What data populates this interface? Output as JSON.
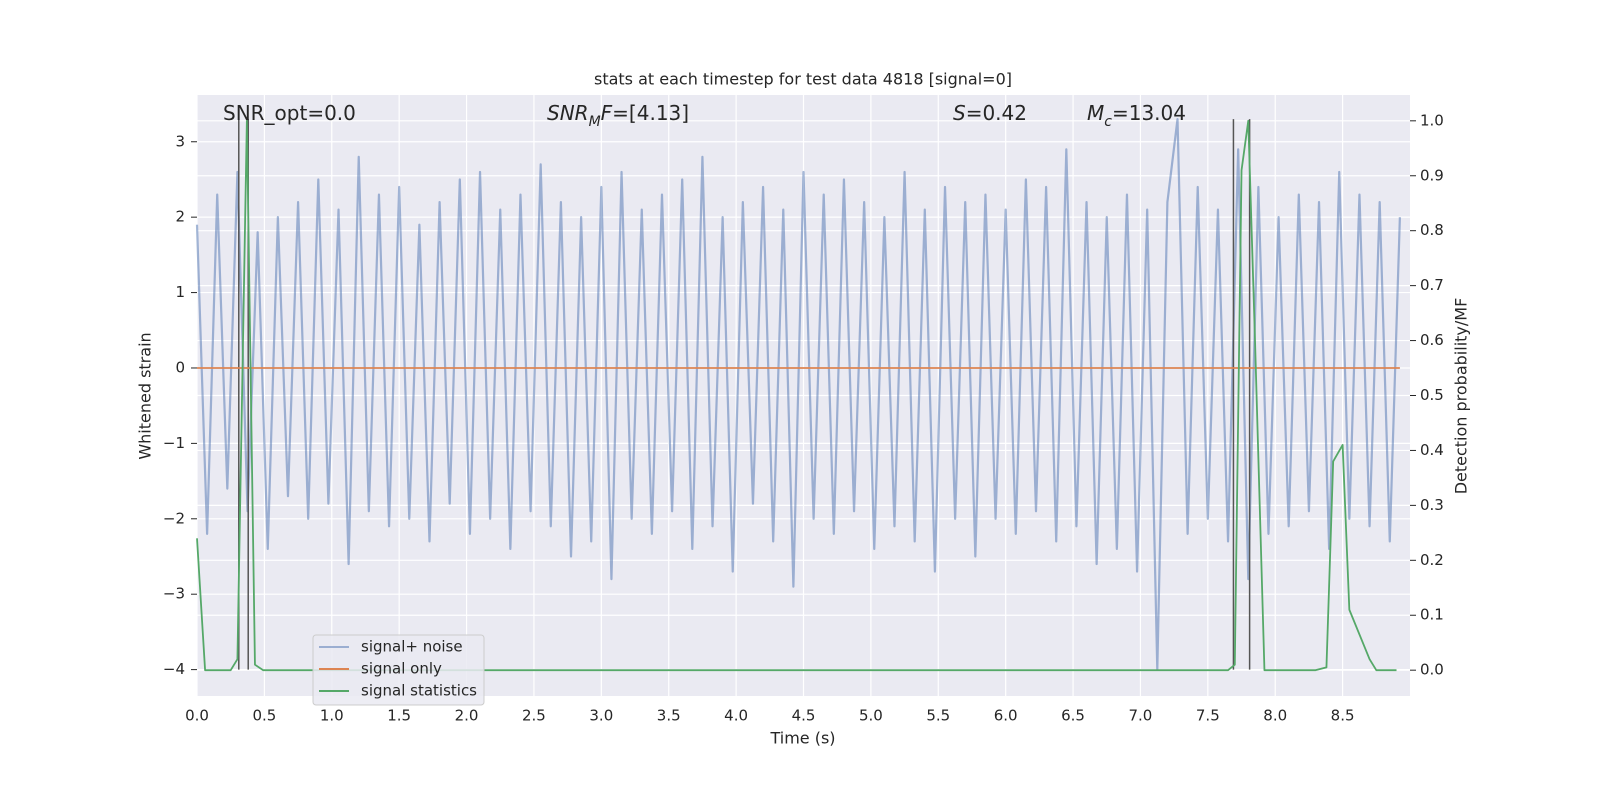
{
  "chart_data": {
    "type": "line",
    "title": "stats at each timestep for test data 4818 [signal=0]",
    "x_label": "Time (s)",
    "y_label": "Whitened strain",
    "y2_label": "Detection probability/MF",
    "annotations": [
      [
        {
          "t": "SNR_opt=0.0",
          "style": "normal"
        }
      ],
      [
        {
          "t": "SNR",
          "style": "italic"
        },
        {
          "t": "M",
          "style": "sub"
        },
        {
          "t": "F",
          "style": "italic"
        },
        {
          "t": "=[4.13]",
          "style": "normal"
        }
      ],
      [
        {
          "t": "S",
          "style": "italic"
        },
        {
          "t": "=0.42",
          "style": "normal"
        }
      ],
      [
        {
          "t": "M",
          "style": "italic"
        },
        {
          "t": "c",
          "style": "sub"
        },
        {
          "t": "=13.04",
          "style": "normal"
        }
      ]
    ],
    "xlim": [
      0,
      9.0
    ],
    "ylim": [
      -4.35,
      3.62
    ],
    "y2lim": [
      -0.047,
      1.047
    ],
    "xticks": [
      {
        "value": 0,
        "label": "0.0"
      },
      0.5,
      {
        "value": 1,
        "label": "1.0"
      },
      1.5,
      {
        "value": 2,
        "label": "2.0"
      },
      2.5,
      {
        "value": 3,
        "label": "3.0"
      },
      3.5,
      {
        "value": 4,
        "label": "4.0"
      },
      4.5,
      {
        "value": 5,
        "label": "5.0"
      },
      5.5,
      {
        "value": 6,
        "label": "6.0"
      },
      6.5,
      {
        "value": 7,
        "label": "7.0"
      },
      7.5,
      {
        "value": 8,
        "label": "8.0"
      },
      8.5
    ],
    "yticks": [
      {
        "value": -4,
        "label": "−4"
      },
      {
        "value": -3,
        "label": "−3"
      },
      {
        "value": -2,
        "label": "−2"
      },
      {
        "value": -1,
        "label": "−1"
      },
      0,
      1,
      2,
      3
    ],
    "y2ticks": [
      {
        "value": 0,
        "label": "0.0"
      },
      0.1,
      0.2,
      0.3,
      0.4,
      0.5,
      0.6,
      0.7,
      0.8,
      0.9,
      {
        "value": 1,
        "label": "1.0"
      }
    ],
    "grid": true,
    "legend": "lower left",
    "vlines": {
      "x": [
        0.31,
        0.38,
        7.69,
        7.81
      ],
      "ymin": -4,
      "ymax": 3.3,
      "color": "#555555"
    },
    "series": [
      {
        "name": "signal+ noise",
        "color": "#4c72b0",
        "alpha": 0.5,
        "x": [
          0,
          0.075,
          0.15,
          0.225,
          0.3,
          0.375,
          0.45,
          0.525,
          0.6,
          0.675,
          0.75,
          0.825,
          0.9,
          0.975,
          1.05,
          1.125,
          1.2,
          1.275,
          1.35,
          1.425,
          1.5,
          1.575,
          1.65,
          1.725,
          1.8,
          1.875,
          1.95,
          2.025,
          2.1,
          2.175,
          2.25,
          2.325,
          2.4,
          2.475,
          2.55,
          2.625,
          2.7,
          2.775,
          2.85,
          2.925,
          3,
          3.075,
          3.15,
          3.225,
          3.3,
          3.375,
          3.45,
          3.525,
          3.6,
          3.675,
          3.75,
          3.825,
          3.9,
          3.975,
          4.05,
          4.125,
          4.2,
          4.275,
          4.35,
          4.425,
          4.5,
          4.575,
          4.65,
          4.725,
          4.8,
          4.875,
          4.95,
          5.025,
          5.1,
          5.175,
          5.25,
          5.325,
          5.4,
          5.475,
          5.55,
          5.625,
          5.7,
          5.775,
          5.85,
          5.925,
          6,
          6.075,
          6.15,
          6.225,
          6.3,
          6.375,
          6.45,
          6.525,
          6.6,
          6.675,
          6.75,
          6.825,
          6.9,
          6.975,
          7.05,
          7.125,
          7.2,
          7.275,
          7.35,
          7.425,
          7.5,
          7.575,
          7.65,
          7.725,
          7.8,
          7.875,
          7.95,
          8.025,
          8.1,
          8.175,
          8.25,
          8.325,
          8.4,
          8.475,
          8.55,
          8.625,
          8.7,
          8.775,
          8.85,
          8.925
        ],
        "values": [
          1.9,
          -2.2,
          2.3,
          -1.6,
          2.6,
          -1.9,
          1.8,
          -2.4,
          2.0,
          -1.7,
          2.2,
          -2.0,
          2.5,
          -1.8,
          2.1,
          -2.6,
          2.8,
          -1.9,
          2.3,
          -2.1,
          2.4,
          -2.0,
          1.9,
          -2.3,
          2.2,
          -1.8,
          2.5,
          -2.2,
          2.6,
          -2.0,
          2.1,
          -2.4,
          2.3,
          -1.9,
          2.7,
          -2.1,
          2.2,
          -2.5,
          2.0,
          -2.3,
          2.4,
          -2.8,
          2.6,
          -2.0,
          2.1,
          -2.2,
          2.3,
          -1.9,
          2.5,
          -2.4,
          2.8,
          -2.1,
          2.0,
          -2.7,
          2.2,
          -1.8,
          2.4,
          -2.3,
          2.1,
          -2.9,
          2.6,
          -2.0,
          2.3,
          -2.2,
          2.5,
          -1.9,
          2.2,
          -2.4,
          2.0,
          -2.1,
          2.6,
          -2.3,
          2.1,
          -2.7,
          2.4,
          -2.0,
          2.2,
          -2.5,
          2.3,
          -2.0,
          2.1,
          -2.2,
          2.5,
          -1.9,
          2.4,
          -2.3,
          2.9,
          -2.1,
          2.2,
          -2.6,
          2.0,
          -2.4,
          2.3,
          -2.7,
          2.1,
          -4.0,
          2.2,
          3.3,
          -2.2,
          2.4,
          -2.0,
          2.1,
          -2.3,
          2.9,
          -2.8,
          2.4,
          -2.2,
          2.0,
          -2.1,
          2.3,
          -1.9,
          2.2,
          -2.4,
          2.6,
          -2.0,
          2.3,
          -2.1,
          2.2,
          -2.3,
          2.0
        ]
      },
      {
        "name": "signal only",
        "color": "#dd8452",
        "x": [
          0,
          8.925
        ],
        "values": [
          0,
          0
        ]
      },
      {
        "name": "signal statistics",
        "color": "#55a868",
        "axis": "y2",
        "x": [
          0,
          0.06,
          0.25,
          0.3,
          0.37,
          0.43,
          0.49,
          7.65,
          7.7,
          7.75,
          7.8,
          7.85,
          7.92,
          8.3,
          8.38,
          8.43,
          8.5,
          8.55,
          8.7,
          8.75,
          8.9
        ],
        "values": [
          0.24,
          0.0,
          0.0,
          0.02,
          1.0,
          0.01,
          0.0,
          0.0,
          0.01,
          0.91,
          1.0,
          0.6,
          0.0,
          0.0,
          0.005,
          0.38,
          0.41,
          0.11,
          0.02,
          0.0,
          0.0
        ]
      }
    ]
  }
}
